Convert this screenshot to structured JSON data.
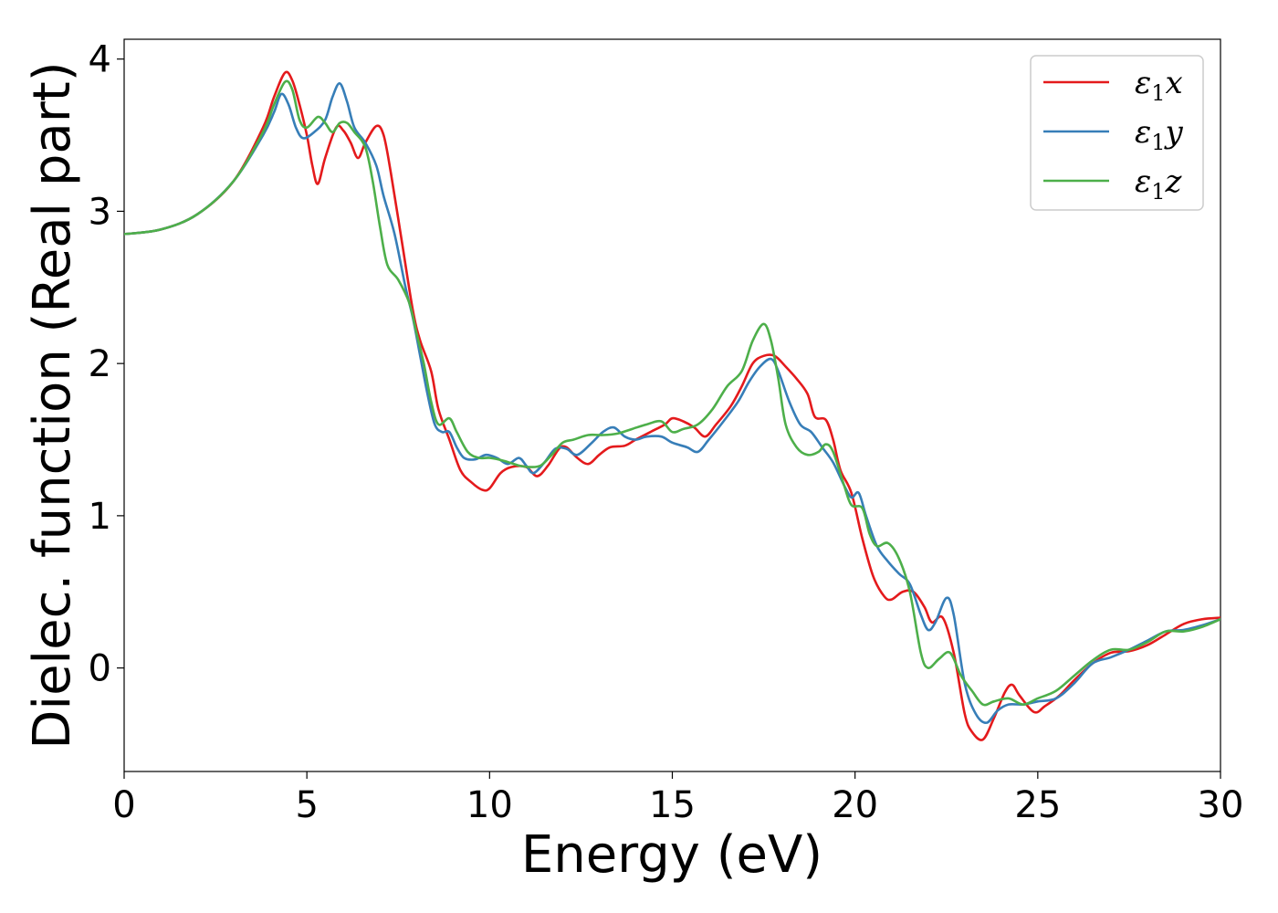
{
  "chart_data": {
    "type": "line",
    "xlabel": "Energy (eV)",
    "ylabel": "Dielec. function (Real part)",
    "xlim": [
      0,
      30
    ],
    "ylim": [
      -0.68,
      4.13
    ],
    "xticks": [
      0,
      5,
      10,
      15,
      20,
      25,
      30
    ],
    "yticks": [
      0,
      1,
      2,
      3,
      4
    ],
    "grid": false,
    "legend_position": "top-right",
    "series": [
      {
        "name": "ε₁x",
        "legend_base": "ε",
        "legend_sub": "1",
        "legend_suffix": "x",
        "color": "#e41a1c",
        "points": [
          [
            0,
            2.85
          ],
          [
            1,
            2.88
          ],
          [
            2,
            2.98
          ],
          [
            3,
            3.2
          ],
          [
            3.8,
            3.55
          ],
          [
            4.1,
            3.75
          ],
          [
            4.4,
            3.91
          ],
          [
            4.6,
            3.86
          ],
          [
            4.8,
            3.7
          ],
          [
            5.0,
            3.5
          ],
          [
            5.15,
            3.3
          ],
          [
            5.3,
            3.18
          ],
          [
            5.5,
            3.35
          ],
          [
            5.8,
            3.55
          ],
          [
            6.0,
            3.53
          ],
          [
            6.2,
            3.45
          ],
          [
            6.4,
            3.35
          ],
          [
            6.6,
            3.45
          ],
          [
            6.9,
            3.56
          ],
          [
            7.1,
            3.5
          ],
          [
            7.3,
            3.25
          ],
          [
            7.6,
            2.8
          ],
          [
            7.9,
            2.35
          ],
          [
            8.1,
            2.15
          ],
          [
            8.4,
            1.95
          ],
          [
            8.6,
            1.7
          ],
          [
            8.9,
            1.5
          ],
          [
            9.2,
            1.3
          ],
          [
            9.5,
            1.22
          ],
          [
            9.8,
            1.17
          ],
          [
            10.0,
            1.18
          ],
          [
            10.3,
            1.28
          ],
          [
            10.6,
            1.32
          ],
          [
            11.0,
            1.32
          ],
          [
            11.3,
            1.26
          ],
          [
            11.6,
            1.33
          ],
          [
            11.9,
            1.44
          ],
          [
            12.1,
            1.45
          ],
          [
            12.4,
            1.38
          ],
          [
            12.7,
            1.34
          ],
          [
            13.0,
            1.4
          ],
          [
            13.3,
            1.45
          ],
          [
            13.7,
            1.46
          ],
          [
            14.0,
            1.5
          ],
          [
            14.4,
            1.55
          ],
          [
            14.8,
            1.6
          ],
          [
            15.0,
            1.64
          ],
          [
            15.3,
            1.62
          ],
          [
            15.6,
            1.58
          ],
          [
            15.9,
            1.52
          ],
          [
            16.2,
            1.6
          ],
          [
            16.6,
            1.72
          ],
          [
            16.9,
            1.85
          ],
          [
            17.2,
            2.0
          ],
          [
            17.5,
            2.05
          ],
          [
            17.8,
            2.05
          ],
          [
            18.1,
            1.98
          ],
          [
            18.4,
            1.9
          ],
          [
            18.7,
            1.8
          ],
          [
            18.9,
            1.65
          ],
          [
            19.2,
            1.63
          ],
          [
            19.4,
            1.5
          ],
          [
            19.6,
            1.3
          ],
          [
            19.9,
            1.15
          ],
          [
            20.2,
            0.85
          ],
          [
            20.5,
            0.6
          ],
          [
            20.8,
            0.47
          ],
          [
            21.0,
            0.45
          ],
          [
            21.3,
            0.5
          ],
          [
            21.6,
            0.5
          ],
          [
            21.9,
            0.4
          ],
          [
            22.1,
            0.3
          ],
          [
            22.4,
            0.33
          ],
          [
            22.7,
            0.1
          ],
          [
            23.0,
            -0.3
          ],
          [
            23.2,
            -0.42
          ],
          [
            23.5,
            -0.47
          ],
          [
            23.8,
            -0.33
          ],
          [
            24.1,
            -0.16
          ],
          [
            24.3,
            -0.11
          ],
          [
            24.5,
            -0.18
          ],
          [
            24.9,
            -0.29
          ],
          [
            25.2,
            -0.25
          ],
          [
            25.6,
            -0.18
          ],
          [
            26.0,
            -0.08
          ],
          [
            26.5,
            0.03
          ],
          [
            27.0,
            0.1
          ],
          [
            27.5,
            0.11
          ],
          [
            28.0,
            0.15
          ],
          [
            28.5,
            0.22
          ],
          [
            29.0,
            0.29
          ],
          [
            29.5,
            0.32
          ],
          [
            30,
            0.33
          ]
        ]
      },
      {
        "name": "ε₁y",
        "legend_base": "ε",
        "legend_sub": "1",
        "legend_suffix": "y",
        "color": "#377eb8",
        "points": [
          [
            0,
            2.85
          ],
          [
            1,
            2.88
          ],
          [
            2,
            2.98
          ],
          [
            3,
            3.2
          ],
          [
            3.8,
            3.5
          ],
          [
            4.1,
            3.65
          ],
          [
            4.3,
            3.77
          ],
          [
            4.5,
            3.7
          ],
          [
            4.7,
            3.55
          ],
          [
            4.9,
            3.48
          ],
          [
            5.2,
            3.52
          ],
          [
            5.5,
            3.6
          ],
          [
            5.7,
            3.75
          ],
          [
            5.9,
            3.84
          ],
          [
            6.1,
            3.72
          ],
          [
            6.3,
            3.55
          ],
          [
            6.6,
            3.45
          ],
          [
            6.9,
            3.3
          ],
          [
            7.1,
            3.1
          ],
          [
            7.4,
            2.85
          ],
          [
            7.7,
            2.5
          ],
          [
            7.9,
            2.3
          ],
          [
            8.1,
            2.05
          ],
          [
            8.3,
            1.8
          ],
          [
            8.5,
            1.6
          ],
          [
            8.7,
            1.55
          ],
          [
            8.9,
            1.55
          ],
          [
            9.1,
            1.45
          ],
          [
            9.3,
            1.38
          ],
          [
            9.6,
            1.37
          ],
          [
            9.9,
            1.4
          ],
          [
            10.2,
            1.38
          ],
          [
            10.5,
            1.34
          ],
          [
            10.8,
            1.38
          ],
          [
            11.0,
            1.33
          ],
          [
            11.2,
            1.28
          ],
          [
            11.5,
            1.35
          ],
          [
            11.8,
            1.44
          ],
          [
            12.1,
            1.44
          ],
          [
            12.4,
            1.4
          ],
          [
            12.8,
            1.48
          ],
          [
            13.1,
            1.55
          ],
          [
            13.4,
            1.58
          ],
          [
            13.7,
            1.52
          ],
          [
            14.0,
            1.5
          ],
          [
            14.3,
            1.52
          ],
          [
            14.7,
            1.52
          ],
          [
            15.0,
            1.48
          ],
          [
            15.4,
            1.45
          ],
          [
            15.7,
            1.42
          ],
          [
            16.0,
            1.5
          ],
          [
            16.4,
            1.62
          ],
          [
            16.8,
            1.75
          ],
          [
            17.1,
            1.88
          ],
          [
            17.4,
            1.98
          ],
          [
            17.7,
            2.03
          ],
          [
            17.9,
            1.95
          ],
          [
            18.2,
            1.75
          ],
          [
            18.5,
            1.6
          ],
          [
            18.8,
            1.55
          ],
          [
            19.1,
            1.45
          ],
          [
            19.4,
            1.35
          ],
          [
            19.7,
            1.2
          ],
          [
            19.9,
            1.12
          ],
          [
            20.1,
            1.15
          ],
          [
            20.3,
            1.0
          ],
          [
            20.6,
            0.8
          ],
          [
            20.9,
            0.7
          ],
          [
            21.2,
            0.62
          ],
          [
            21.5,
            0.55
          ],
          [
            21.8,
            0.35
          ],
          [
            22.0,
            0.25
          ],
          [
            22.2,
            0.3
          ],
          [
            22.5,
            0.46
          ],
          [
            22.7,
            0.35
          ],
          [
            23.0,
            -0.1
          ],
          [
            23.3,
            -0.3
          ],
          [
            23.6,
            -0.36
          ],
          [
            23.9,
            -0.28
          ],
          [
            24.2,
            -0.24
          ],
          [
            24.6,
            -0.24
          ],
          [
            25.0,
            -0.22
          ],
          [
            25.5,
            -0.2
          ],
          [
            26.0,
            -0.1
          ],
          [
            26.5,
            0.03
          ],
          [
            27.0,
            0.07
          ],
          [
            27.5,
            0.12
          ],
          [
            28.0,
            0.18
          ],
          [
            28.5,
            0.24
          ],
          [
            29.0,
            0.25
          ],
          [
            29.5,
            0.28
          ],
          [
            30,
            0.32
          ]
        ]
      },
      {
        "name": "ε₁z",
        "legend_base": "ε",
        "legend_sub": "1",
        "legend_suffix": "z",
        "color": "#4daf4a",
        "points": [
          [
            0,
            2.85
          ],
          [
            1,
            2.88
          ],
          [
            2,
            2.98
          ],
          [
            3,
            3.2
          ],
          [
            3.8,
            3.52
          ],
          [
            4.1,
            3.7
          ],
          [
            4.4,
            3.85
          ],
          [
            4.6,
            3.8
          ],
          [
            4.8,
            3.6
          ],
          [
            5.0,
            3.55
          ],
          [
            5.3,
            3.62
          ],
          [
            5.5,
            3.58
          ],
          [
            5.7,
            3.52
          ],
          [
            5.9,
            3.58
          ],
          [
            6.1,
            3.58
          ],
          [
            6.3,
            3.52
          ],
          [
            6.6,
            3.42
          ],
          [
            6.8,
            3.2
          ],
          [
            7.0,
            2.9
          ],
          [
            7.2,
            2.65
          ],
          [
            7.5,
            2.55
          ],
          [
            7.8,
            2.4
          ],
          [
            8.0,
            2.2
          ],
          [
            8.2,
            2.0
          ],
          [
            8.4,
            1.75
          ],
          [
            8.6,
            1.6
          ],
          [
            8.9,
            1.64
          ],
          [
            9.1,
            1.55
          ],
          [
            9.4,
            1.42
          ],
          [
            9.7,
            1.38
          ],
          [
            10.0,
            1.38
          ],
          [
            10.4,
            1.36
          ],
          [
            10.8,
            1.33
          ],
          [
            11.1,
            1.32
          ],
          [
            11.4,
            1.33
          ],
          [
            11.7,
            1.4
          ],
          [
            12.0,
            1.48
          ],
          [
            12.3,
            1.5
          ],
          [
            12.7,
            1.53
          ],
          [
            13.1,
            1.53
          ],
          [
            13.5,
            1.54
          ],
          [
            13.9,
            1.57
          ],
          [
            14.3,
            1.6
          ],
          [
            14.7,
            1.62
          ],
          [
            15.0,
            1.55
          ],
          [
            15.3,
            1.57
          ],
          [
            15.7,
            1.6
          ],
          [
            16.1,
            1.7
          ],
          [
            16.5,
            1.85
          ],
          [
            16.9,
            1.95
          ],
          [
            17.2,
            2.15
          ],
          [
            17.5,
            2.26
          ],
          [
            17.7,
            2.15
          ],
          [
            17.9,
            1.9
          ],
          [
            18.1,
            1.6
          ],
          [
            18.4,
            1.45
          ],
          [
            18.7,
            1.4
          ],
          [
            19.0,
            1.42
          ],
          [
            19.2,
            1.47
          ],
          [
            19.4,
            1.42
          ],
          [
            19.7,
            1.2
          ],
          [
            19.9,
            1.07
          ],
          [
            20.2,
            1.05
          ],
          [
            20.4,
            0.88
          ],
          [
            20.6,
            0.8
          ],
          [
            20.9,
            0.82
          ],
          [
            21.2,
            0.72
          ],
          [
            21.5,
            0.5
          ],
          [
            21.8,
            0.1
          ],
          [
            22.0,
            0.0
          ],
          [
            22.3,
            0.06
          ],
          [
            22.6,
            0.1
          ],
          [
            22.9,
            -0.05
          ],
          [
            23.2,
            -0.15
          ],
          [
            23.5,
            -0.24
          ],
          [
            23.8,
            -0.22
          ],
          [
            24.2,
            -0.2
          ],
          [
            24.6,
            -0.24
          ],
          [
            25.0,
            -0.2
          ],
          [
            25.5,
            -0.15
          ],
          [
            26.0,
            -0.05
          ],
          [
            26.5,
            0.05
          ],
          [
            27.0,
            0.12
          ],
          [
            27.5,
            0.12
          ],
          [
            28.0,
            0.17
          ],
          [
            28.5,
            0.24
          ],
          [
            29.0,
            0.24
          ],
          [
            29.5,
            0.27
          ],
          [
            30,
            0.32
          ]
        ]
      }
    ]
  }
}
